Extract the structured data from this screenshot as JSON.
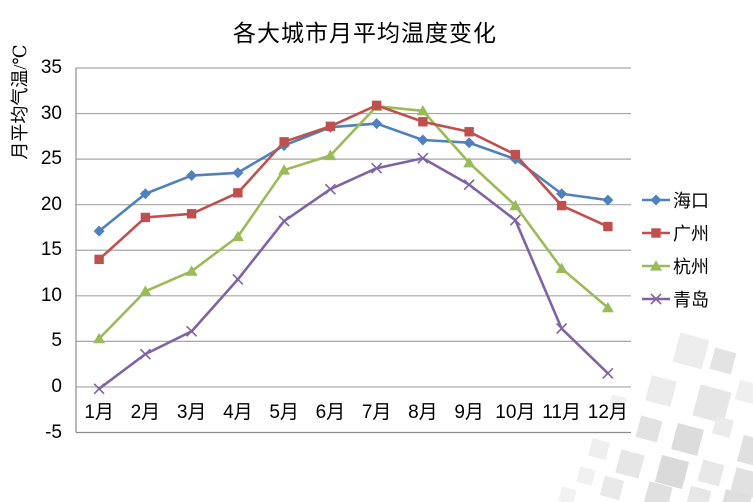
{
  "title": "各大城市月平均温度变化",
  "y_axis_title": "月平均气温/℃",
  "chart_data": {
    "type": "line",
    "title": "各大城市月平均温度变化",
    "xlabel": "",
    "ylabel": "月平均气温/℃",
    "ylim": [
      -5,
      35
    ],
    "ytick_step": 5,
    "yticks": [
      35,
      30,
      25,
      20,
      15,
      10,
      5,
      0,
      -5
    ],
    "grid": true,
    "legend_position": "right",
    "categories": [
      "1月",
      "2月",
      "3月",
      "4月",
      "5月",
      "6月",
      "7月",
      "8月",
      "9月",
      "10月",
      "11月",
      "12月"
    ],
    "series": [
      {
        "key": "haikou",
        "name": "海口",
        "color": "#4F81BD",
        "marker": "diamond",
        "values": [
          17.1,
          21.2,
          23.2,
          23.5,
          26.5,
          28.5,
          28.9,
          27.1,
          26.8,
          25.0,
          21.2,
          20.5
        ]
      },
      {
        "key": "guangzhou",
        "name": "广州",
        "color": "#C0504D",
        "marker": "square",
        "values": [
          14.0,
          18.6,
          19.0,
          21.3,
          26.9,
          28.6,
          30.9,
          29.1,
          28.0,
          25.5,
          19.9,
          17.6
        ]
      },
      {
        "key": "hangzhou",
        "name": "杭州",
        "color": "#9BBB59",
        "marker": "triangle",
        "values": [
          5.3,
          10.5,
          12.7,
          16.5,
          23.8,
          25.4,
          30.8,
          30.3,
          24.6,
          19.9,
          13.0,
          8.7
        ]
      },
      {
        "key": "qingdao",
        "name": "青岛",
        "color": "#8064A2",
        "marker": "x",
        "values": [
          -0.2,
          3.6,
          6.1,
          11.8,
          18.2,
          21.7,
          24.0,
          25.1,
          22.2,
          18.3,
          6.4,
          1.5
        ]
      }
    ],
    "colors": {
      "gridline": "#A6A6A6",
      "axis_line": "#8C8C8C",
      "series_blue": "#4F81BD",
      "series_red": "#C0504D",
      "series_green": "#9BBB59",
      "series_purple": "#8064A2"
    }
  }
}
